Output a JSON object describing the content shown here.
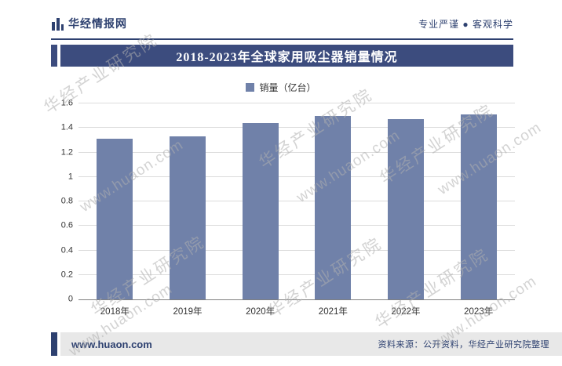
{
  "header": {
    "brand": "华经情报网",
    "slogan": "专业严谨 ● 客观科学"
  },
  "chart_data": {
    "type": "bar",
    "title": "2018-2023年全球家用吸尘器销量情况",
    "categories": [
      "2018年",
      "2019年",
      "2020年",
      "2021年",
      "2022年",
      "2023年"
    ],
    "values": [
      1.31,
      1.33,
      1.44,
      1.5,
      1.47,
      1.51
    ],
    "series_name": "销量（亿台）",
    "ylabel": "销量（亿台）",
    "xlabel": "",
    "ylim": [
      0,
      1.6
    ],
    "yticks": [
      "0",
      "0.2",
      "0.4",
      "0.6",
      "0.8",
      "1",
      "1.2",
      "1.4",
      "1.6"
    ],
    "grid": true,
    "legend_position": "top",
    "bar_color": "#7081A9"
  },
  "legend": {
    "label": "销量（亿台）"
  },
  "footer": {
    "site": "www.huaon.com",
    "source": "资料来源：公开资料，华经产业研究院整理"
  },
  "watermark": {
    "text1": "华经产业研究院",
    "text2": "www.huaon.com"
  },
  "colors": {
    "accent": "#2E4170",
    "title_bar": "#3C4C7E",
    "bar": "#7081A9",
    "footer_bg": "#E8E8E8"
  }
}
